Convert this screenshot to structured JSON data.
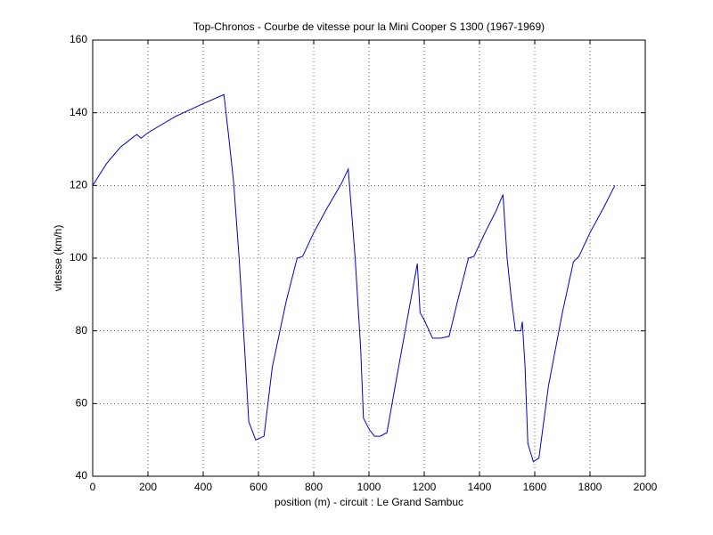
{
  "chart_data": {
    "type": "line",
    "title": "Top-Chronos - Courbe de vitesse pour la Mini Cooper S 1300 (1967-1969)",
    "x_label": "position (m) - circuit : Le Grand Sambuc",
    "y_label": "vitesse (km/h)",
    "x": [
      0,
      50,
      100,
      150,
      160,
      175,
      200,
      300,
      400,
      475,
      490,
      510,
      530,
      550,
      565,
      590,
      620,
      650,
      700,
      740,
      760,
      800,
      850,
      900,
      925,
      950,
      970,
      980,
      1000,
      1020,
      1040,
      1065,
      1100,
      1150,
      1175,
      1185,
      1200,
      1230,
      1260,
      1290,
      1320,
      1360,
      1380,
      1420,
      1460,
      1485,
      1500,
      1515,
      1530,
      1550,
      1555,
      1565,
      1575,
      1595,
      1615,
      1650,
      1700,
      1740,
      1760,
      1800,
      1850,
      1890
    ],
    "series": [
      {
        "color": "#0000cc",
        "values": [
          120,
          126,
          130.5,
          133.5,
          134,
          133,
          134.5,
          139,
          142.5,
          145,
          135,
          121,
          100,
          75,
          55,
          50,
          51,
          70,
          88,
          100,
          100.5,
          107,
          114,
          120.5,
          124.5,
          100,
          75,
          56,
          53,
          51,
          51,
          52,
          67,
          88,
          98.5,
          85,
          83,
          78,
          78,
          78.5,
          88,
          100,
          100.5,
          107,
          113,
          117.5,
          100,
          89,
          80,
          80,
          82.5,
          70,
          49,
          44,
          45,
          65,
          85,
          99,
          100.5,
          107,
          114,
          120
        ]
      }
    ],
    "xlim": [
      0,
      2000
    ],
    "ylim": [
      40,
      160
    ],
    "xticks": [
      0,
      200,
      400,
      600,
      800,
      1000,
      1200,
      1400,
      1600,
      1800,
      2000
    ],
    "yticks": [
      40,
      60,
      80,
      100,
      120,
      140,
      160
    ],
    "grid": true
  }
}
